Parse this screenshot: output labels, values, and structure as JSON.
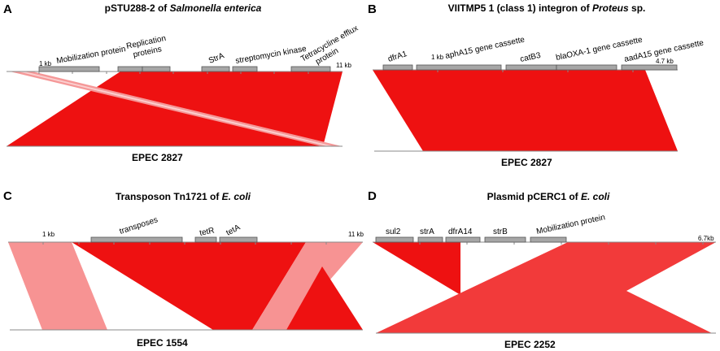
{
  "colors": {
    "match_strong": "#ee1111",
    "match_mid": "#f23a3a",
    "match_light": "#f59898",
    "gene_box": "#a6a6a6",
    "axis": "#888888"
  },
  "panels": [
    {
      "id": "A",
      "letter": "A",
      "title_parts": [
        {
          "text": "pSTU288-2 of ",
          "italic": false
        },
        {
          "text": "Salmonella enterica",
          "italic": true
        }
      ],
      "scale_start": "1 kb",
      "scale_end": "11 kb",
      "genes": [
        "Mobilization protein",
        "Replication proteins",
        "StrA",
        "streptomycin kinase",
        "Tetracycline efflux protein"
      ],
      "bottom_label": "EPEC 2827"
    },
    {
      "id": "B",
      "letter": "B",
      "title_parts": [
        {
          "text": "VIITMP5 1  (class 1) integron of ",
          "italic": false
        },
        {
          "text": "Proteus",
          "italic": true
        },
        {
          "text": " sp.",
          "italic": false
        }
      ],
      "scale_start": "1 kb",
      "scale_end": "4.7 kb",
      "genes": [
        "dfrA1",
        "aphA15 gene cassette",
        "catB3",
        "blaOXA-1 gene cassette",
        "aadA15 gene cassette"
      ],
      "bottom_label": "EPEC 2827"
    },
    {
      "id": "C",
      "letter": "C",
      "title_parts": [
        {
          "text": "Transposon Tn1721 of ",
          "italic": false
        },
        {
          "text": "E. coli",
          "italic": true
        }
      ],
      "scale_start": "1 kb",
      "scale_end": "11 kb",
      "genes": [
        "transposes",
        "tetR",
        "tetA"
      ],
      "bottom_label": "EPEC 1554"
    },
    {
      "id": "D",
      "letter": "D",
      "title_parts": [
        {
          "text": "Plasmid pCERC1 of ",
          "italic": false
        },
        {
          "text": "E. coli",
          "italic": true
        }
      ],
      "scale_end": "6.7kb",
      "genes": [
        "sul2",
        "strA",
        "dfrA14",
        "strB",
        "Mobilization protein"
      ],
      "bottom_label": "EPEC 2252"
    }
  ]
}
